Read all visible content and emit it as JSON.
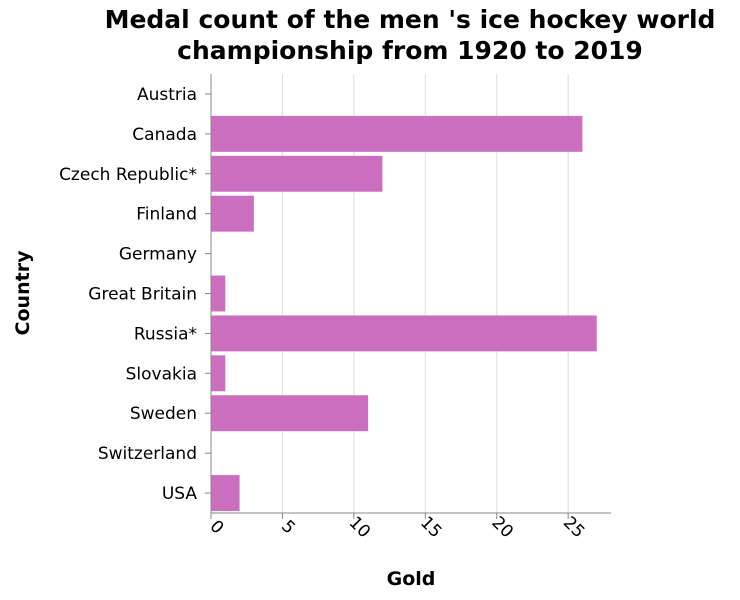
{
  "chart_data": {
    "type": "bar",
    "orientation": "horizontal",
    "title_lines": [
      "Medal count of the men 's ice hockey world",
      "championship from 1920 to 2019"
    ],
    "xlabel": "Gold",
    "ylabel": "Country",
    "categories": [
      "Austria",
      "Canada",
      "Czech Republic*",
      "Finland",
      "Germany",
      "Great Britain",
      "Russia*",
      "Slovakia",
      "Sweden",
      "Switzerland",
      "USA"
    ],
    "values": [
      0,
      26,
      12,
      3,
      0,
      1,
      27,
      1,
      11,
      0,
      2
    ],
    "xlim": [
      0,
      28
    ],
    "xticks": [
      0,
      5,
      10,
      15,
      20,
      25
    ],
    "grid": true,
    "bar_color": "#cc6ebf"
  }
}
